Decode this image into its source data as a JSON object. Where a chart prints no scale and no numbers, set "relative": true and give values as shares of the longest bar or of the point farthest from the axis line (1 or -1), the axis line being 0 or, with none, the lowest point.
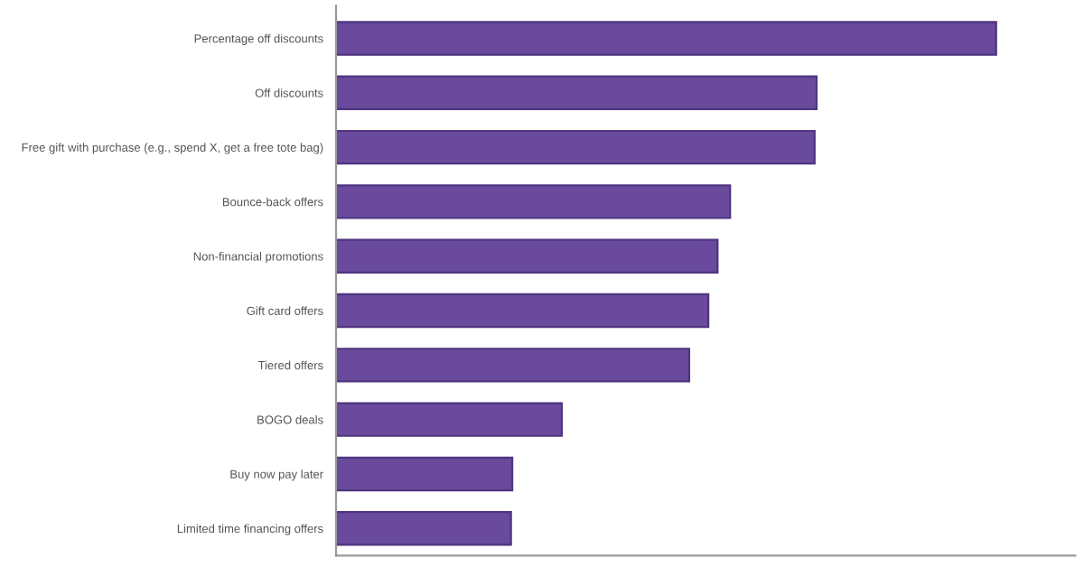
{
  "chart_data": {
    "type": "bar",
    "orientation": "horizontal",
    "relative": true,
    "categories": [
      "Percentage off discounts",
      "Off discounts",
      "Free gift with purchase (e.g., spend X, get a free tote bag)",
      "Bounce-back offers",
      "Non-financial promotions",
      "Gift card offers",
      "Tiered offers",
      "BOGO deals",
      "Buy now pay later",
      "Limited time financing offers"
    ],
    "values": [
      1,
      0.728,
      0.725,
      0.597,
      0.578,
      0.564,
      0.535,
      0.342,
      0.267,
      0.265
    ],
    "color": "#694a9c",
    "grid": false,
    "legend": false
  }
}
